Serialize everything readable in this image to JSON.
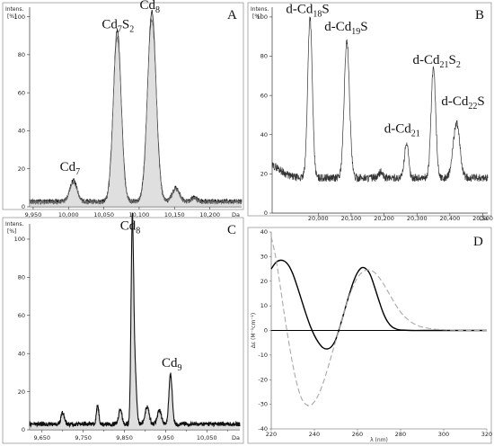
{
  "chart_data": [
    {
      "id": "A",
      "type": "line",
      "panel_label": "A",
      "y_title": "Intens.",
      "y_unit": "[%]",
      "x_unit": "Da",
      "xlim": [
        9945,
        10245
      ],
      "ylim": [
        0,
        105
      ],
      "x_ticks": [
        9950,
        10000,
        10050,
        10100,
        10150,
        10200
      ],
      "x_tick_labels": [
        "9,950",
        "10,000",
        "10,050",
        "10,100",
        "10,150",
        "10,200"
      ],
      "y_ticks": [
        0,
        20,
        40,
        60,
        80,
        100
      ],
      "baseline": 3,
      "peaks": [
        {
          "x": 10007,
          "height": 11,
          "width": 5
        },
        {
          "x": 10069,
          "height": 90,
          "width": 5.5
        },
        {
          "x": 10118,
          "height": 100,
          "width": 6
        },
        {
          "x": 10152,
          "height": 7,
          "width": 5
        },
        {
          "x": 10178,
          "height": 2,
          "width": 4
        }
      ],
      "annotations": [
        {
          "base": "Cd",
          "sub": "7",
          "tail": "",
          "tail_sub": "",
          "x": 10002,
          "y": 19
        },
        {
          "base": "Cd",
          "sub": "7",
          "tail": "S",
          "tail_sub": "2",
          "x": 10070,
          "y": 94
        },
        {
          "base": "Cd",
          "sub": "8",
          "tail": "",
          "tail_sub": "",
          "x": 10115,
          "y": 104
        }
      ]
    },
    {
      "id": "B",
      "type": "line",
      "panel_label": "B",
      "y_title": "Intens.",
      "y_unit": "[%]",
      "x_unit": "Da",
      "xlim": [
        19860,
        20515
      ],
      "ylim": [
        0,
        105
      ],
      "x_ticks": [
        20000,
        20100,
        20200,
        20300,
        20400,
        20500
      ],
      "x_tick_labels": [
        "20,000",
        "20,100",
        "20,200",
        "20,300",
        "20,400",
        "20,500"
      ],
      "y_ticks": [
        0,
        20,
        40,
        60,
        80,
        100
      ],
      "baseline": 18,
      "peaks": [
        {
          "x": 19975,
          "height": 82,
          "width": 7
        },
        {
          "x": 20087,
          "height": 70,
          "width": 8
        },
        {
          "x": 20268,
          "height": 18,
          "width": 6
        },
        {
          "x": 20350,
          "height": 56,
          "width": 7
        },
        {
          "x": 20420,
          "height": 28,
          "width": 10
        },
        {
          "x": 20190,
          "height": 3,
          "width": 5
        }
      ],
      "annotations": [
        {
          "base": "d-Cd",
          "sub": "18",
          "tail": "S",
          "tail_sub": "",
          "x": 19968,
          "y": 102
        },
        {
          "base": "d-Cd",
          "sub": "19",
          "tail": "S",
          "tail_sub": "",
          "x": 20085,
          "y": 93
        },
        {
          "base": "d-Cd",
          "sub": "21",
          "tail": "",
          "tail_sub": "",
          "x": 20255,
          "y": 41
        },
        {
          "base": "d-Cd",
          "sub": "21",
          "tail": "S",
          "tail_sub": "2",
          "x": 20360,
          "y": 76
        },
        {
          "base": "d-Cd",
          "sub": "22",
          "tail": "S",
          "tail_sub": "",
          "x": 20440,
          "y": 55
        }
      ]
    },
    {
      "id": "C",
      "type": "line",
      "panel_label": "C",
      "y_title": "Intens.",
      "y_unit": "[%]",
      "x_unit": "Da",
      "xlim": [
        9620,
        10130
      ],
      "ylim": [
        0,
        108
      ],
      "x_ticks": [
        9650,
        9750,
        9850,
        9950,
        10050
      ],
      "x_tick_labels": [
        "9,650",
        "9,750",
        "9,850",
        "9,950",
        "10,050"
      ],
      "minor_x_ticks": [
        9700,
        9800,
        9900,
        10000,
        10100
      ],
      "minor_x_tick_labels": [
        "9,700",
        "9,800",
        "9,900",
        "10,000",
        "10,100"
      ],
      "y_ticks": [
        0,
        20,
        40,
        60,
        80,
        100
      ],
      "baseline": 3,
      "peaks": [
        {
          "x": 9869,
          "height": 100,
          "width": 3
        },
        {
          "x": 9875,
          "height": 30,
          "width": 4
        },
        {
          "x": 9962,
          "height": 26,
          "width": 4
        },
        {
          "x": 9785,
          "height": 10,
          "width": 3
        },
        {
          "x": 9905,
          "height": 9,
          "width": 5
        },
        {
          "x": 9935,
          "height": 7,
          "width": 5
        },
        {
          "x": 9840,
          "height": 8,
          "width": 4
        },
        {
          "x": 9700,
          "height": 6,
          "width": 4
        }
      ],
      "annotations": [
        {
          "base": "Cd",
          "sub": "8",
          "tail": "",
          "tail_sub": "",
          "x": 9864,
          "y": 105
        },
        {
          "base": "Cd",
          "sub": "9",
          "tail": "",
          "tail_sub": "",
          "x": 9965,
          "y": 33
        }
      ]
    },
    {
      "id": "D",
      "type": "line",
      "panel_label": "D",
      "xlabel": "λ (nm)",
      "ylabel": "Δε (M⁻¹cm⁻¹)",
      "xlim": [
        220,
        320
      ],
      "ylim": [
        -40,
        40
      ],
      "x_ticks": [
        220,
        240,
        260,
        280,
        300,
        320
      ],
      "y_ticks": [
        -40,
        -30,
        -20,
        -10,
        0,
        10,
        20,
        30,
        40
      ],
      "series": [
        {
          "style": "solid",
          "color": "#000000",
          "x": [
            220,
            222,
            224,
            226,
            228,
            230,
            232,
            234,
            236,
            238,
            240,
            242,
            244,
            246,
            248,
            250,
            252,
            254,
            256,
            258,
            260,
            262,
            264,
            266,
            268,
            270,
            272,
            274,
            276,
            278,
            280,
            285,
            290,
            300,
            310,
            320
          ],
          "y": [
            25,
            27.5,
            28.5,
            28.2,
            26.5,
            23,
            18,
            12.5,
            7,
            2,
            -2,
            -5,
            -7,
            -7.5,
            -6.5,
            -3.5,
            2,
            8,
            14,
            19.5,
            23.5,
            25.5,
            25,
            22.5,
            17.5,
            12,
            7,
            3.5,
            1.5,
            0.6,
            0.2,
            0,
            0,
            0,
            0,
            0
          ]
        },
        {
          "style": "dashed",
          "color": "#a8a8a8",
          "x": [
            220,
            222,
            224,
            226,
            228,
            230,
            232,
            234,
            236,
            238,
            240,
            242,
            244,
            246,
            248,
            250,
            252,
            254,
            256,
            258,
            260,
            262,
            264,
            266,
            268,
            270,
            272,
            274,
            276,
            278,
            280,
            282,
            284,
            286,
            288,
            290,
            295,
            300,
            305,
            310,
            320
          ],
          "y": [
            38,
            30,
            19,
            7,
            -4,
            -14,
            -22,
            -27.5,
            -30,
            -30.5,
            -29,
            -26,
            -21.5,
            -16,
            -10,
            -4,
            2,
            8,
            13.5,
            18,
            21.5,
            23.5,
            24.5,
            24.5,
            23.5,
            21.5,
            19,
            16,
            13,
            10,
            7.5,
            5.5,
            4,
            2.8,
            2,
            1.4,
            0.6,
            0.3,
            0.1,
            0,
            0
          ]
        }
      ]
    }
  ]
}
